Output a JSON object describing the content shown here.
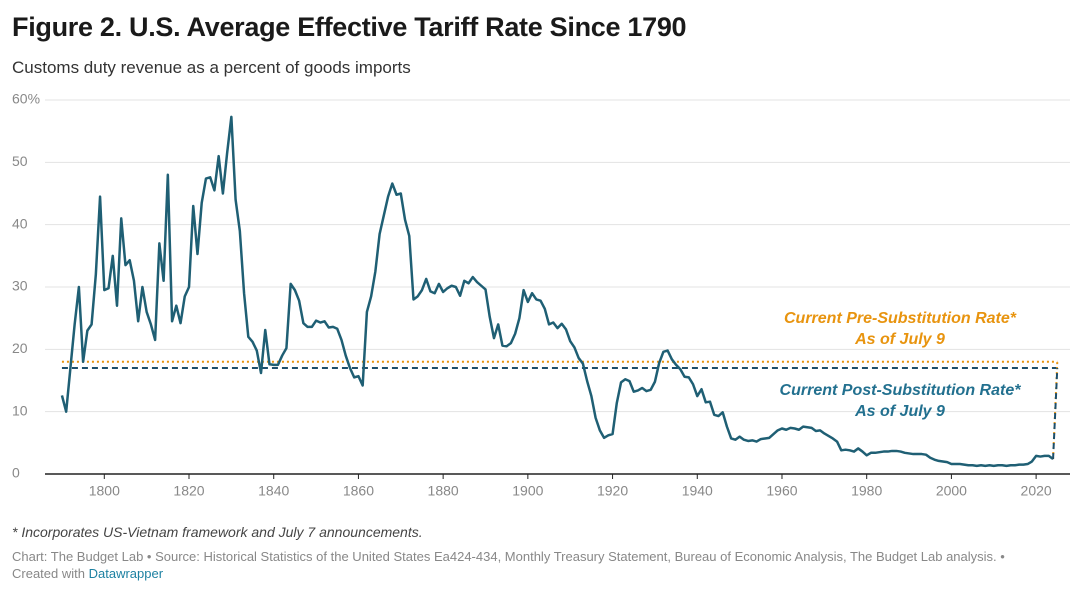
{
  "chart_data": {
    "type": "line",
    "title": "Figure 2. U.S. Average Effective Tariff Rate Since 1790",
    "subtitle": "Customs duty revenue as a percent of goods imports",
    "note": "* Incorporates US-Vietnam framework and July 7 announcements.",
    "source": "Chart: The Budget Lab • Source: Historical Statistics of the United States Ea424-434, Monthly Treasury Statement, Bureau of Economic Analysis, The Budget Lab analysis. •",
    "credit": "Created with",
    "credit_link": "Datawrapper",
    "xlim": [
      1786,
      2028
    ],
    "xticks": [
      1800,
      1820,
      1840,
      1860,
      1880,
      1900,
      1920,
      1940,
      1960,
      1980,
      2000,
      2020
    ],
    "ylim": [
      0,
      60
    ],
    "yticks": [
      0,
      10,
      20,
      30,
      40,
      50,
      {
        "value": 60,
        "label": "60%"
      }
    ],
    "grid": true,
    "x": [
      1790,
      1791,
      1792,
      1793,
      1794,
      1795,
      1796,
      1797,
      1798,
      1799,
      1800,
      1801,
      1802,
      1803,
      1804,
      1805,
      1806,
      1807,
      1808,
      1809,
      1810,
      1811,
      1812,
      1813,
      1814,
      1815,
      1816,
      1817,
      1818,
      1819,
      1820,
      1821,
      1822,
      1823,
      1824,
      1825,
      1826,
      1827,
      1828,
      1829,
      1830,
      1831,
      1832,
      1833,
      1834,
      1835,
      1836,
      1837,
      1838,
      1839,
      1840,
      1841,
      1842,
      1843,
      1844,
      1845,
      1846,
      1847,
      1848,
      1849,
      1850,
      1851,
      1852,
      1853,
      1854,
      1855,
      1856,
      1857,
      1858,
      1859,
      1860,
      1861,
      1862,
      1863,
      1864,
      1865,
      1866,
      1867,
      1868,
      1869,
      1870,
      1871,
      1872,
      1873,
      1874,
      1875,
      1876,
      1877,
      1878,
      1879,
      1880,
      1881,
      1882,
      1883,
      1884,
      1885,
      1886,
      1887,
      1888,
      1889,
      1890,
      1891,
      1892,
      1893,
      1894,
      1895,
      1896,
      1897,
      1898,
      1899,
      1900,
      1901,
      1902,
      1903,
      1904,
      1905,
      1906,
      1907,
      1908,
      1909,
      1910,
      1911,
      1912,
      1913,
      1914,
      1915,
      1916,
      1917,
      1918,
      1919,
      1920,
      1921,
      1922,
      1923,
      1924,
      1925,
      1926,
      1927,
      1928,
      1929,
      1930,
      1931,
      1932,
      1933,
      1934,
      1935,
      1936,
      1937,
      1938,
      1939,
      1940,
      1941,
      1942,
      1943,
      1944,
      1945,
      1946,
      1947,
      1948,
      1949,
      1950,
      1951,
      1952,
      1953,
      1954,
      1955,
      1956,
      1957,
      1958,
      1959,
      1960,
      1961,
      1962,
      1963,
      1964,
      1965,
      1966,
      1967,
      1968,
      1969,
      1970,
      1971,
      1972,
      1973,
      1974,
      1975,
      1976,
      1977,
      1978,
      1979,
      1980,
      1981,
      1982,
      1983,
      1984,
      1985,
      1986,
      1987,
      1988,
      1989,
      1990,
      1991,
      1992,
      1993,
      1994,
      1995,
      1996,
      1997,
      1998,
      1999,
      2000,
      2001,
      2002,
      2003,
      2004,
      2005,
      2006,
      2007,
      2008,
      2009,
      2010,
      2011,
      2012,
      2013,
      2014,
      2015,
      2016,
      2017,
      2018,
      2019,
      2020,
      2021,
      2022,
      2023,
      2024
    ],
    "series": [
      {
        "color": "#1f5f74",
        "values": [
          12.6,
          10,
          17,
          24,
          30,
          18,
          23,
          24,
          32,
          44.5,
          29.5,
          29.8,
          35,
          27,
          41,
          33.5,
          34.3,
          31,
          24.5,
          30,
          26,
          24,
          21.5,
          37,
          31,
          48,
          24.5,
          27,
          24.2,
          28.5,
          30,
          43,
          35.3,
          43.5,
          47.4,
          47.6,
          45.5,
          51,
          45,
          51.5,
          57.3,
          44,
          39,
          29,
          22,
          21.2,
          19.8,
          16.2,
          23.1,
          17.6,
          17.5,
          17.5,
          19,
          20.2,
          30.5,
          29.5,
          27.8,
          24.2,
          23.6,
          23.6,
          24.6,
          24.3,
          24.5,
          23.5,
          23.6,
          23.3,
          21.5,
          19,
          17,
          15.5,
          15.7,
          14.2,
          26,
          28.5,
          32.5,
          38.5,
          41.5,
          44.5,
          46.6,
          44.8,
          45,
          40.8,
          38.2,
          28,
          28.5,
          29.5,
          31.3,
          29.3,
          29,
          30.5,
          29.2,
          29.8,
          30.2,
          30,
          28.6,
          31,
          30.6,
          31.6,
          30.8,
          30.2,
          29.6,
          25.2,
          21.8,
          24,
          20.6,
          20.5,
          21,
          22.5,
          25,
          29.5,
          27.6,
          29,
          28,
          27.8,
          26.5,
          24,
          24.3,
          23.4,
          24.1,
          23.2,
          21.3,
          20.3,
          18.6,
          17.7,
          14.9,
          12.5,
          9,
          7,
          5.8,
          6.2,
          6.4,
          11.4,
          14.7,
          15.2,
          14.9,
          13.2,
          13.4,
          13.8,
          13.3,
          13.5,
          14.8,
          17.8,
          19.6,
          19.8,
          18.4,
          17.5,
          16.8,
          15.6,
          15.5,
          14.4,
          12.5,
          13.6,
          11.5,
          11.6,
          9.5,
          9.3,
          9.9,
          7.6,
          5.7,
          5.5,
          6,
          5.5,
          5.3,
          5.4,
          5.2,
          5.6,
          5.7,
          5.8,
          6.4,
          7,
          7.3,
          7.1,
          7.4,
          7.3,
          7.1,
          7.6,
          7.5,
          7.4,
          6.9,
          7,
          6.5,
          6.1,
          5.7,
          5.2,
          3.8,
          3.9,
          3.8,
          3.6,
          4.1,
          3.6,
          3,
          3.4,
          3.4,
          3.5,
          3.6,
          3.6,
          3.7,
          3.7,
          3.6,
          3.4,
          3.3,
          3.2,
          3.2,
          3.2,
          3.1,
          2.6,
          2.3,
          2.1,
          2,
          1.9,
          1.6,
          1.6,
          1.6,
          1.5,
          1.4,
          1.4,
          1.3,
          1.4,
          1.3,
          1.4,
          1.3,
          1.4,
          1.4,
          1.3,
          1.4,
          1.4,
          1.5,
          1.5,
          1.6,
          2,
          2.9,
          2.8,
          2.9,
          2.9,
          2.4
        ]
      }
    ],
    "reference_lines": [
      {
        "value": 18,
        "x_range": [
          1790,
          2025
        ],
        "color": "#e8940f",
        "style": "dotted",
        "label_lines": [
          "Current Pre-Substitution Rate*",
          "As of July 9"
        ]
      },
      {
        "value": 17,
        "x_range": [
          1790,
          2025
        ],
        "color": "#1d4f6c",
        "style": "dashed",
        "label_color": "#22708f",
        "label_lines": [
          "Current Post-Substitution Rate*",
          "As of July 9"
        ]
      }
    ]
  }
}
